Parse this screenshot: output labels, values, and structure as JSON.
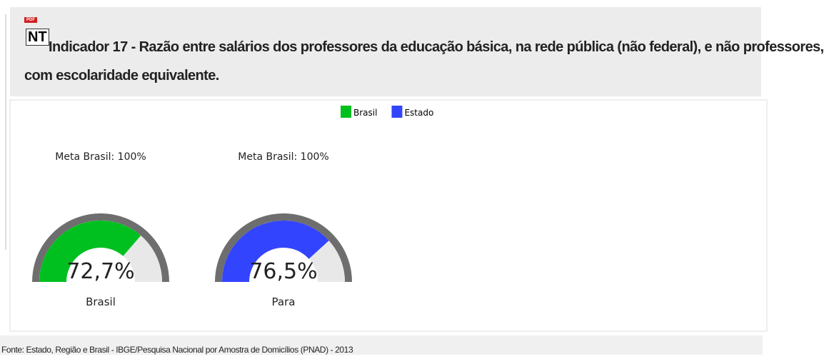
{
  "header": {
    "pdf_label": "PDF",
    "icon_label": "NT",
    "title": "Indicador 17 - Razão entre salários dos professores da educação básica, na rede pública (não federal), e não professores, com escolaridade equivalente."
  },
  "chart_data": {
    "type": "gauge",
    "categories": [
      "Brasil",
      "Para"
    ],
    "annotations": [
      "Meta Brasil: 100%",
      "Meta Brasil: 100%"
    ],
    "ylim": [
      0,
      100
    ],
    "series": [
      {
        "name": "Brasil",
        "color": "#00c020",
        "values": [
          72.7,
          null
        ],
        "value_labels": [
          "72,7%",
          null
        ]
      },
      {
        "name": "Estado",
        "color": "#3344ff",
        "values": [
          null,
          76.5
        ],
        "value_labels": [
          null,
          "76,5%"
        ]
      }
    ]
  },
  "footer": {
    "source": "Fonte: Estado, Região e Brasil - IBGE/Pesquisa Nacional por Amostra de Domicílios (PNAD) - 2013"
  }
}
